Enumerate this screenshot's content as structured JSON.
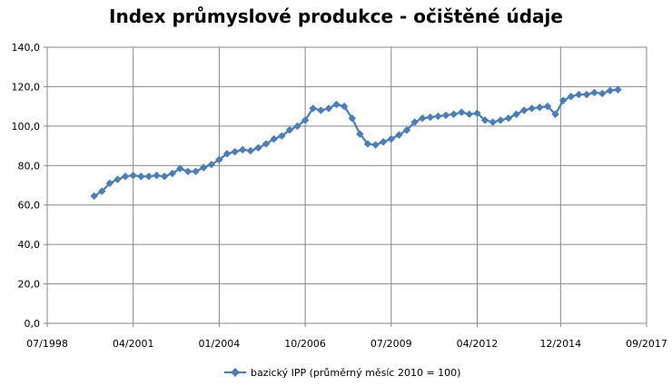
{
  "chart_data": {
    "type": "line",
    "title": "Index průmyslové produkce - očištěné údaje",
    "xlabel": "",
    "ylabel": "",
    "x_tick_labels": [
      "07/1998",
      "04/2001",
      "01/2004",
      "10/2006",
      "07/2009",
      "04/2012",
      "12/2014",
      "09/2017"
    ],
    "x_tick_dates": [
      "1998-07",
      "2001-04",
      "2004-01",
      "2006-10",
      "2009-07",
      "2012-04",
      "2014-12",
      "2017-09"
    ],
    "x_range": [
      "1998-07",
      "2017-09"
    ],
    "y_tick_labels": [
      "0,0",
      "20,0",
      "40,0",
      "60,0",
      "80,0",
      "100,0",
      "120,0",
      "140,0"
    ],
    "ylim": [
      0,
      140
    ],
    "grid": true,
    "legend_position": "bottom",
    "color": "#4a7ebb",
    "series": [
      {
        "name": "bazický IPP (průměrný měsíc 2010 = 100)",
        "x": [
          "2000-01",
          "2000-04",
          "2000-07",
          "2000-10",
          "2001-01",
          "2001-04",
          "2001-07",
          "2001-10",
          "2002-01",
          "2002-04",
          "2002-07",
          "2002-10",
          "2003-01",
          "2003-04",
          "2003-07",
          "2003-10",
          "2004-01",
          "2004-04",
          "2004-07",
          "2004-10",
          "2005-01",
          "2005-04",
          "2005-07",
          "2005-10",
          "2006-01",
          "2006-04",
          "2006-07",
          "2006-10",
          "2007-01",
          "2007-04",
          "2007-07",
          "2007-10",
          "2008-01",
          "2008-04",
          "2008-07",
          "2008-10",
          "2009-01",
          "2009-04",
          "2009-07",
          "2009-10",
          "2010-01",
          "2010-04",
          "2010-07",
          "2010-10",
          "2011-01",
          "2011-04",
          "2011-07",
          "2011-10",
          "2012-01",
          "2012-04",
          "2012-07",
          "2012-10",
          "2013-01",
          "2013-04",
          "2013-07",
          "2013-10",
          "2014-01",
          "2014-04",
          "2014-07",
          "2014-10",
          "2015-01",
          "2015-04",
          "2015-07",
          "2015-10",
          "2016-01",
          "2016-04",
          "2016-07",
          "2016-10"
        ],
        "values": [
          64.5,
          67,
          71,
          73,
          74.5,
          75,
          74.5,
          74.5,
          75,
          74.5,
          76,
          78.5,
          77,
          77,
          79,
          80.5,
          83,
          86,
          87,
          88,
          87.5,
          89,
          91,
          93.5,
          95,
          98,
          100,
          103,
          109,
          108,
          109,
          111,
          110,
          104,
          96,
          91,
          90.5,
          92,
          93.5,
          95.5,
          98,
          102,
          104,
          104.5,
          105,
          105.5,
          106,
          107,
          106,
          106.5,
          103,
          102,
          103,
          104,
          106,
          108,
          109,
          109.5,
          110,
          106,
          113,
          115,
          116,
          116,
          117,
          116.5,
          118,
          118.5
        ]
      }
    ]
  }
}
